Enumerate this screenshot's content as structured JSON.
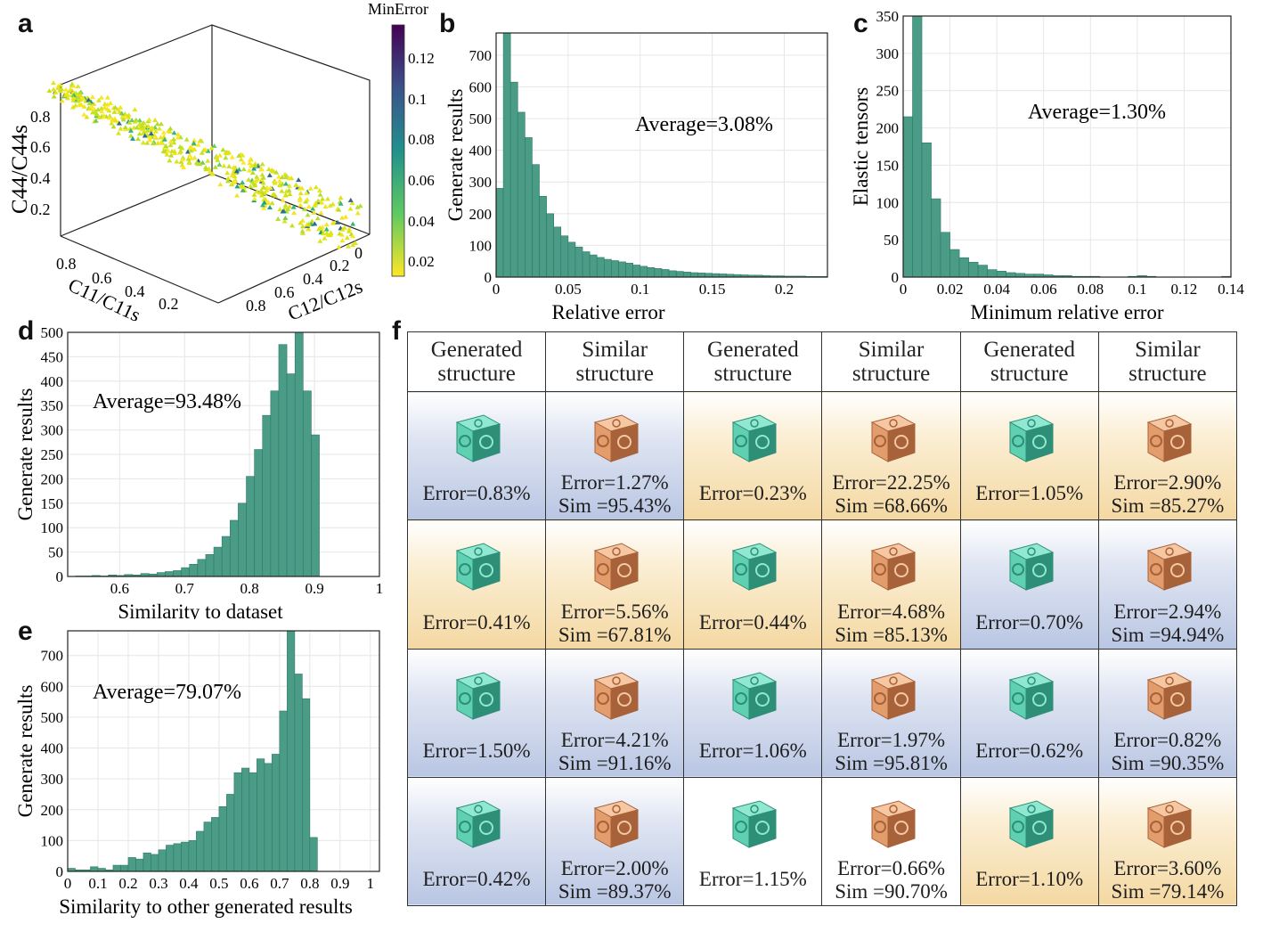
{
  "panels": {
    "a": "a",
    "b": "b",
    "c": "c",
    "d": "d",
    "e": "e",
    "f": "f"
  },
  "colors": {
    "bar": "#4a9c87",
    "bar_edge": "#2f7766",
    "generated": "#5fd0b2",
    "similar": "#e39c6c",
    "cell_blue": "#b9c6e3",
    "cell_orange": "#f4d8a2"
  },
  "chart_data": [
    {
      "id": "a",
      "type": "scatter3d",
      "zlabel": "C44/C44s",
      "xlabel": "C11/C11s",
      "ylabel": "C12/C12s",
      "colorbar_label": "MinError",
      "colorbar_ticks": [
        "0.12",
        "0.1",
        "0.08",
        "0.06",
        "0.04",
        "0.02"
      ],
      "ztick_labels": [
        "0.8",
        "0.6",
        "0.4",
        "0.2"
      ],
      "xtick_labels": [
        "0.8",
        "0.6",
        "0.4",
        "0.2"
      ],
      "ytick_labels": [
        "0.8",
        "0.6",
        "0.4",
        "0.2",
        "0"
      ],
      "clim": [
        0,
        0.13
      ]
    },
    {
      "id": "b",
      "type": "bar",
      "xlabel": "Relative error",
      "ylabel": "Generate results",
      "annotation": "Average=3.08%",
      "xlim": [
        0,
        0.23
      ],
      "ylim": [
        0,
        770
      ],
      "bin_width": 0.005,
      "xtick_values": [
        0,
        0.05,
        0.1,
        0.15,
        0.2
      ],
      "xtick_labels": [
        "0",
        "0.05",
        "0.1",
        "0.15",
        "0.2"
      ],
      "ytick_values": [
        0,
        100,
        200,
        300,
        400,
        500,
        600,
        700
      ],
      "ytick_labels": [
        "0",
        "100",
        "200",
        "300",
        "400",
        "500",
        "600",
        "700"
      ],
      "values": [
        280,
        790,
        615,
        520,
        440,
        355,
        255,
        200,
        158,
        130,
        110,
        95,
        80,
        70,
        62,
        56,
        52,
        48,
        44,
        38,
        34,
        30,
        27,
        24,
        20,
        18,
        16,
        14,
        13,
        12,
        11,
        10,
        9,
        8,
        7,
        6,
        6,
        5,
        4,
        4,
        3,
        3,
        3,
        2,
        2,
        2
      ]
    },
    {
      "id": "c",
      "type": "bar",
      "xlabel": "Minimum relative error",
      "ylabel": "Elastic tensors",
      "annotation": "Average=1.30%",
      "xlim": [
        0,
        0.14
      ],
      "ylim": [
        0,
        350
      ],
      "bin_width": 0.004,
      "xtick_values": [
        0,
        0.02,
        0.04,
        0.06,
        0.08,
        0.1,
        0.12,
        0.14
      ],
      "xtick_labels": [
        "0",
        "0.02",
        "0.04",
        "0.06",
        "0.08",
        "0.1",
        "0.12",
        "0.14"
      ],
      "ytick_values": [
        0,
        50,
        100,
        150,
        200,
        250,
        300,
        350
      ],
      "ytick_labels": [
        "0",
        "50",
        "100",
        "150",
        "200",
        "250",
        "300",
        "350"
      ],
      "values": [
        215,
        360,
        180,
        105,
        60,
        37,
        26,
        20,
        16,
        10,
        8,
        6,
        5,
        4,
        4,
        3,
        2,
        2,
        1,
        1,
        1,
        0,
        0,
        0,
        1,
        2,
        1,
        0,
        0,
        0,
        0,
        0,
        0,
        0,
        1
      ]
    },
    {
      "id": "d",
      "type": "bar",
      "xlabel": "Similarity to dataset",
      "ylabel": "Generate results",
      "annotation": "Average=93.48%",
      "xlim": [
        0.52,
        1
      ],
      "ylim": [
        0,
        500
      ],
      "bin_width": 0.0125,
      "xtick_values": [
        0.6,
        0.7,
        0.8,
        0.9,
        1
      ],
      "xtick_labels": [
        "0.6",
        "0.7",
        "0.8",
        "0.9",
        "1"
      ],
      "ytick_values": [
        0,
        50,
        100,
        150,
        200,
        250,
        300,
        350,
        400,
        450,
        500
      ],
      "ytick_labels": [
        "0",
        "50",
        "100",
        "150",
        "200",
        "250",
        "300",
        "350",
        "400",
        "450",
        "500"
      ],
      "values": [
        0,
        1,
        1,
        2,
        1,
        3,
        2,
        4,
        3,
        6,
        5,
        8,
        10,
        12,
        18,
        25,
        35,
        45,
        60,
        82,
        115,
        150,
        205,
        260,
        330,
        380,
        475,
        415,
        520,
        380,
        290
      ]
    },
    {
      "id": "e",
      "type": "bar",
      "xlabel": "Similarity to other generated results",
      "ylabel": "Generate results",
      "annotation": "Average=79.07%",
      "xlim": [
        0,
        1.03
      ],
      "ylim": [
        0,
        780
      ],
      "bin_width": 0.025,
      "xtick_values": [
        0,
        0.1,
        0.2,
        0.3,
        0.4,
        0.5,
        0.6,
        0.7,
        0.8,
        0.9,
        1
      ],
      "xtick_labels": [
        "0",
        "0.1",
        "0.2",
        "0.3",
        "0.4",
        "0.5",
        "0.6",
        "0.7",
        "0.8",
        "0.9",
        "1"
      ],
      "ytick_values": [
        0,
        100,
        200,
        300,
        400,
        500,
        600,
        700
      ],
      "ytick_labels": [
        "0",
        "100",
        "200",
        "300",
        "400",
        "500",
        "600",
        "700"
      ],
      "values": [
        10,
        5,
        5,
        15,
        10,
        5,
        20,
        20,
        45,
        40,
        60,
        55,
        70,
        85,
        90,
        95,
        100,
        130,
        160,
        175,
        210,
        250,
        320,
        335,
        320,
        365,
        350,
        380,
        520,
        780,
        640,
        560,
        110
      ]
    },
    {
      "id": "f",
      "type": "table",
      "headers": [
        [
          "Generated",
          "structure"
        ],
        [
          "Similar",
          "structure"
        ],
        [
          "Generated",
          "structure"
        ],
        [
          "Similar",
          "structure"
        ],
        [
          "Generated",
          "structure"
        ],
        [
          "Similar",
          "structure"
        ]
      ],
      "rows": [
        [
          {
            "l1": "Error=0.83%",
            "l2": "",
            "bg": "bl",
            "kind": "gen"
          },
          {
            "l1": "Error=1.27%",
            "l2": "Sim =95.43%",
            "bg": "bl",
            "kind": "sim"
          },
          {
            "l1": "Error=0.23%",
            "l2": "",
            "bg": "or",
            "kind": "gen"
          },
          {
            "l1": "Error=22.25%",
            "l2": "Sim =68.66%",
            "bg": "or",
            "kind": "sim"
          },
          {
            "l1": "Error=1.05%",
            "l2": "",
            "bg": "or",
            "kind": "gen"
          },
          {
            "l1": "Error=2.90%",
            "l2": "Sim =85.27%",
            "bg": "or",
            "kind": "sim"
          }
        ],
        [
          {
            "l1": "Error=0.41%",
            "l2": "",
            "bg": "or",
            "kind": "gen"
          },
          {
            "l1": "Error=5.56%",
            "l2": "Sim =67.81%",
            "bg": "or",
            "kind": "sim"
          },
          {
            "l1": "Error=0.44%",
            "l2": "",
            "bg": "or",
            "kind": "gen"
          },
          {
            "l1": "Error=4.68%",
            "l2": "Sim =85.13%",
            "bg": "or",
            "kind": "sim"
          },
          {
            "l1": "Error=0.70%",
            "l2": "",
            "bg": "bl",
            "kind": "gen"
          },
          {
            "l1": "Error=2.94%",
            "l2": "Sim =94.94%",
            "bg": "bl",
            "kind": "sim"
          }
        ],
        [
          {
            "l1": "Error=1.50%",
            "l2": "",
            "bg": "bl",
            "kind": "gen"
          },
          {
            "l1": "Error=4.21%",
            "l2": "Sim =91.16%",
            "bg": "bl",
            "kind": "sim"
          },
          {
            "l1": "Error=1.06%",
            "l2": "",
            "bg": "bl",
            "kind": "gen"
          },
          {
            "l1": "Error=1.97%",
            "l2": "Sim =95.81%",
            "bg": "bl",
            "kind": "sim"
          },
          {
            "l1": "Error=0.62%",
            "l2": "",
            "bg": "bl",
            "kind": "gen"
          },
          {
            "l1": "Error=0.82%",
            "l2": "Sim =90.35%",
            "bg": "bl",
            "kind": "sim"
          }
        ],
        [
          {
            "l1": "Error=0.42%",
            "l2": "",
            "bg": "bl",
            "kind": "gen"
          },
          {
            "l1": "Error=2.00%",
            "l2": "Sim =89.37%",
            "bg": "bl",
            "kind": "sim"
          },
          {
            "l1": "Error=1.15%",
            "l2": "",
            "bg": "wh",
            "kind": "gen"
          },
          {
            "l1": "Error=0.66%",
            "l2": "Sim =90.70%",
            "bg": "wh",
            "kind": "sim"
          },
          {
            "l1": "Error=1.10%",
            "l2": "",
            "bg": "or",
            "kind": "gen"
          },
          {
            "l1": "Error=3.60%",
            "l2": "Sim =79.14%",
            "bg": "or",
            "kind": "sim"
          }
        ]
      ]
    }
  ]
}
